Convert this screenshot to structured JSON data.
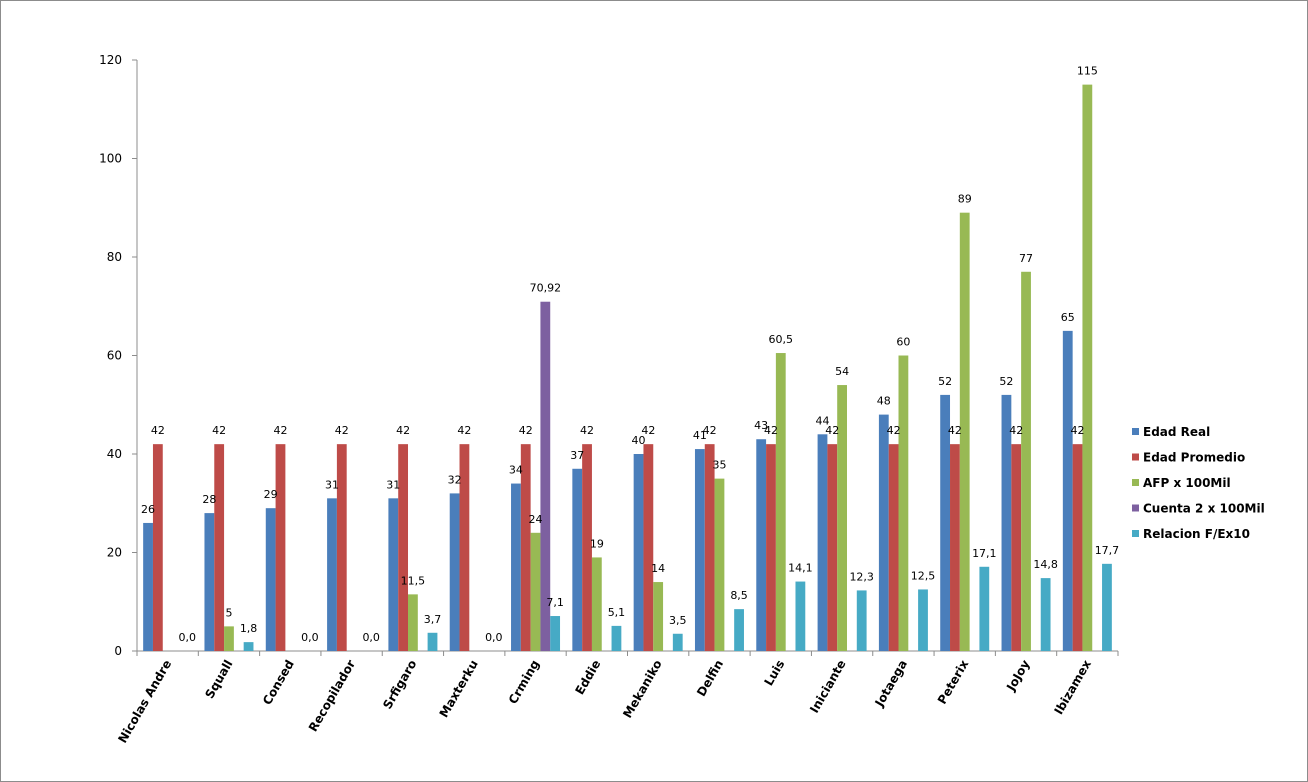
{
  "chart_data": {
    "type": "bar",
    "title": "",
    "xlabel": "",
    "ylabel": "",
    "ylim": [
      0,
      120
    ],
    "yticks": [
      "0",
      "20",
      "40",
      "60",
      "80",
      "100",
      "120"
    ],
    "grid": false,
    "legend_position": "right",
    "categories": [
      "Nicolas Andre",
      "Squall",
      "Consed",
      "Recopilador",
      "Srfigaro",
      "Maxterku",
      "Crming",
      "Eddie",
      "Mekaniko",
      "Delfin",
      "Luis",
      "Iniciante",
      "Jotaega",
      "Peterix",
      "JoJoy",
      "Ibizamex"
    ],
    "series": [
      {
        "name": "Edad Real",
        "color": "#4a7ebb",
        "values": [
          26,
          28,
          29,
          31,
          31,
          32,
          34,
          37,
          40,
          41,
          43,
          44,
          48,
          52,
          52,
          65
        ],
        "labels": [
          "26",
          "28",
          "29",
          "31",
          "31",
          "32",
          "34",
          "37",
          "40",
          "41",
          "43",
          "44",
          "48",
          "52",
          "52",
          "65"
        ]
      },
      {
        "name": "Edad Promedio",
        "color": "#be4b48",
        "values": [
          42,
          42,
          42,
          42,
          42,
          42,
          42,
          42,
          42,
          42,
          42,
          42,
          42,
          42,
          42,
          42
        ],
        "labels": [
          "42",
          "42",
          "42",
          "42",
          "42",
          "42",
          "42",
          "42",
          "42",
          "42",
          "42",
          "42",
          "42",
          "42",
          "42",
          "42"
        ]
      },
      {
        "name": "AFP x 100Mil",
        "color": "#98b954",
        "values": [
          null,
          5,
          null,
          null,
          11.5,
          null,
          24,
          19,
          14,
          35,
          60.5,
          54,
          60,
          89,
          77,
          115
        ],
        "labels": [
          null,
          "5",
          null,
          null,
          "11,5",
          null,
          "24",
          "19",
          "14",
          "35",
          "60,5",
          "54",
          "60",
          "89",
          "77",
          "115"
        ]
      },
      {
        "name": "Cuenta 2 x 100Mil",
        "color": "#7d60a0",
        "values": [
          null,
          null,
          null,
          null,
          null,
          null,
          70.92,
          null,
          null,
          null,
          null,
          null,
          null,
          null,
          null,
          null
        ],
        "labels": [
          null,
          null,
          null,
          null,
          null,
          null,
          "70,92",
          null,
          null,
          null,
          null,
          null,
          null,
          null,
          null,
          null
        ]
      },
      {
        "name": "Relacion F/Ex10",
        "color": "#46aac5",
        "values": [
          0,
          1.8,
          0,
          0,
          3.7,
          0,
          7.1,
          5.1,
          3.5,
          8.5,
          14.1,
          12.3,
          12.5,
          17.1,
          14.8,
          17.7
        ],
        "labels": [
          "0,0",
          "1,8",
          "0,0",
          "0,0",
          "3,7",
          "0,0",
          "7,1",
          "5,1",
          "3,5",
          "8,5",
          "14,1",
          "12,3",
          "12,5",
          "17,1",
          "14,8",
          "17,7"
        ]
      }
    ]
  }
}
